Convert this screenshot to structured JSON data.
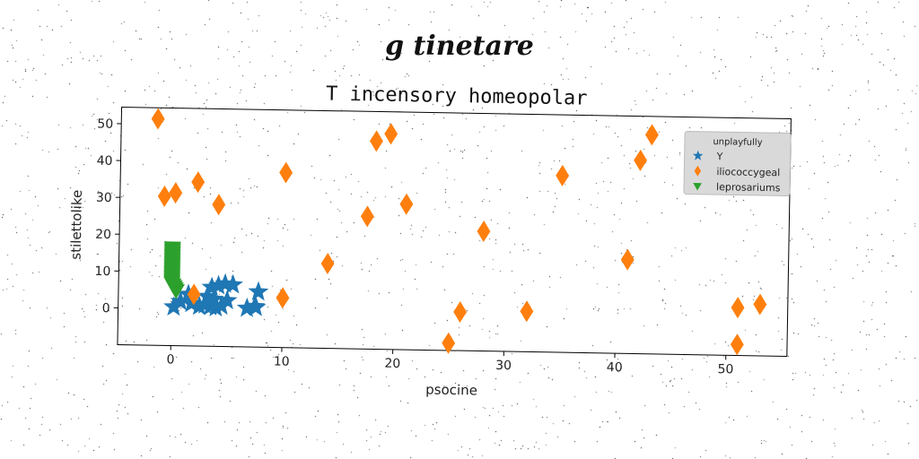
{
  "suptitle": "g tinetare",
  "chart_data": {
    "type": "scatter",
    "title": "T incensory homeopolar",
    "xlabel": "psocine",
    "ylabel": "stilettolike",
    "xlim": [
      -4.8,
      55.5
    ],
    "ylim": [
      -10,
      54.5
    ],
    "xticks": [
      0,
      10,
      20,
      30,
      40,
      50
    ],
    "yticks": [
      0,
      10,
      20,
      30,
      40,
      50
    ],
    "legend": {
      "title": "unplayfully",
      "position": "top-right",
      "entries": [
        "Y",
        "iliococcygeal",
        "leprosariums"
      ]
    },
    "series": [
      {
        "name": "Y",
        "marker": "star",
        "color": "#1f77b4",
        "points": [
          [
            0.2,
            0.5
          ],
          [
            0.8,
            2.0
          ],
          [
            1.5,
            4.0
          ],
          [
            1.8,
            1.5
          ],
          [
            2.5,
            0.8
          ],
          [
            3.0,
            1.2
          ],
          [
            3.2,
            3.5
          ],
          [
            3.5,
            0.8
          ],
          [
            3.8,
            2.8
          ],
          [
            4.0,
            0.5
          ],
          [
            4.2,
            6.5
          ],
          [
            4.5,
            1.0
          ],
          [
            4.8,
            7.0
          ],
          [
            5.0,
            2.5
          ],
          [
            5.5,
            6.8
          ],
          [
            6.8,
            0.5
          ],
          [
            7.5,
            1.0
          ],
          [
            7.8,
            5.0
          ],
          [
            7.6,
            0.8
          ],
          [
            3.6,
            6.0
          ]
        ]
      },
      {
        "name": "iliococcygeal",
        "marker": "diamond",
        "color": "#ff7f0e",
        "points": [
          [
            -1.5,
            51.5
          ],
          [
            -0.8,
            30.5
          ],
          [
            0.2,
            31.5
          ],
          [
            2.2,
            34.5
          ],
          [
            4.1,
            28.5
          ],
          [
            10.1,
            37.5
          ],
          [
            2.0,
            4.0
          ],
          [
            10.0,
            3.5
          ],
          [
            14.0,
            13.0
          ],
          [
            17.5,
            26.0
          ],
          [
            18.2,
            46.5
          ],
          [
            19.5,
            48.5
          ],
          [
            21.0,
            29.5
          ],
          [
            25.0,
            -8.0
          ],
          [
            26.0,
            0.5
          ],
          [
            28.0,
            22.5
          ],
          [
            32.0,
            1.0
          ],
          [
            35.0,
            38.0
          ],
          [
            41.0,
            15.5
          ],
          [
            42.0,
            42.5
          ],
          [
            43.0,
            49.5
          ],
          [
            50.2,
            39.0
          ],
          [
            51.0,
            3.0
          ],
          [
            51.0,
            -7.0
          ],
          [
            53.0,
            4.0
          ]
        ]
      },
      {
        "name": "leprosariums",
        "marker": "triangle-down",
        "color": "#2ca02c",
        "points": [
          [
            0.0,
            16.5
          ],
          [
            0.0,
            16.0
          ],
          [
            0.0,
            15.5
          ],
          [
            0.0,
            15.0
          ],
          [
            0.0,
            14.5
          ],
          [
            0.0,
            14.0
          ],
          [
            0.0,
            13.5
          ],
          [
            0.0,
            13.0
          ],
          [
            0.0,
            12.5
          ],
          [
            0.0,
            12.0
          ],
          [
            0.0,
            11.5
          ],
          [
            0.0,
            11.0
          ],
          [
            0.0,
            10.5
          ],
          [
            0.0,
            10.0
          ],
          [
            0.0,
            9.5
          ],
          [
            0.0,
            9.0
          ],
          [
            0.0,
            8.5
          ],
          [
            0.0,
            8.0
          ],
          [
            0.0,
            7.5
          ],
          [
            0.0,
            7.0
          ],
          [
            0.1,
            6.5
          ],
          [
            0.2,
            6.0
          ],
          [
            0.3,
            5.5
          ],
          [
            0.4,
            5.0
          ]
        ]
      }
    ]
  }
}
